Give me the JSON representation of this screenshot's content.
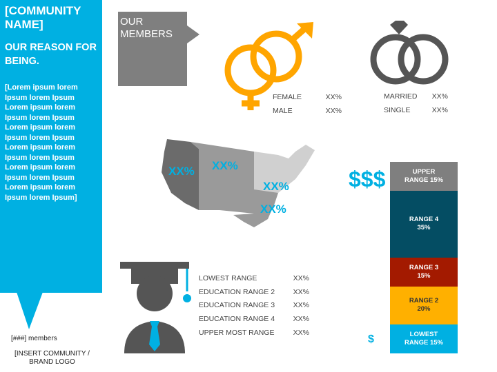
{
  "sidebar": {
    "title": "[COMMUNITY NAME]",
    "subtitle": "OUR REASON FOR BEING.",
    "body": "[Lorem ipsum lorem Ipsum lorem Ipsum Lorem ipsum lorem Ipsum lorem Ipsum Lorem ipsum lorem Ipsum lorem Ipsum Lorem ipsum lorem Ipsum lorem Ipsum Lorem ipsum lorem Ipsum lorem Ipsum Lorem ipsum lorem Ipsum lorem Ipsum]",
    "members": "[###] members",
    "logo": "[INSERT COMMUNITY / BRAND LOGO"
  },
  "header": {
    "label": "OUR MEMBERS"
  },
  "gender": [
    {
      "label": "FEMALE",
      "value": "XX%"
    },
    {
      "label": "MALE",
      "value": "XX%"
    }
  ],
  "marital": [
    {
      "label": "MARRIED",
      "value": "XX%"
    },
    {
      "label": "SINGLE",
      "value": "XX%"
    }
  ],
  "map": {
    "regions": [
      "XX%",
      "XX%",
      "XX%",
      "XX%"
    ]
  },
  "education": [
    {
      "label": "LOWEST RANGE",
      "value": "XX%"
    },
    {
      "label": "EDUCATION  RANGE 2",
      "value": "XX%"
    },
    {
      "label": "EDUCATION  RANGE 3",
      "value": "XX%"
    },
    {
      "label": "EDUCATION  RANGE 4",
      "value": "XX%"
    },
    {
      "label": "UPPER MOST RANGE",
      "value": "XX%"
    }
  ],
  "income": {
    "high_label": "$$$",
    "low_label": "$",
    "segments": [
      {
        "label": "UPPER RANGE 15%",
        "percent": 15,
        "color": "#7f7f7f"
      },
      {
        "label": "RANGE 4 35%",
        "percent": 35,
        "color": "#044d63"
      },
      {
        "label": "RANGE 3 15%",
        "percent": 15,
        "color": "#a31a00"
      },
      {
        "label": "RANGE 2 20%",
        "percent": 20,
        "color": "#ffb000"
      },
      {
        "label": "LOWEST RANGE 15%",
        "percent": 15,
        "color": "#00b0e2"
      }
    ]
  }
}
